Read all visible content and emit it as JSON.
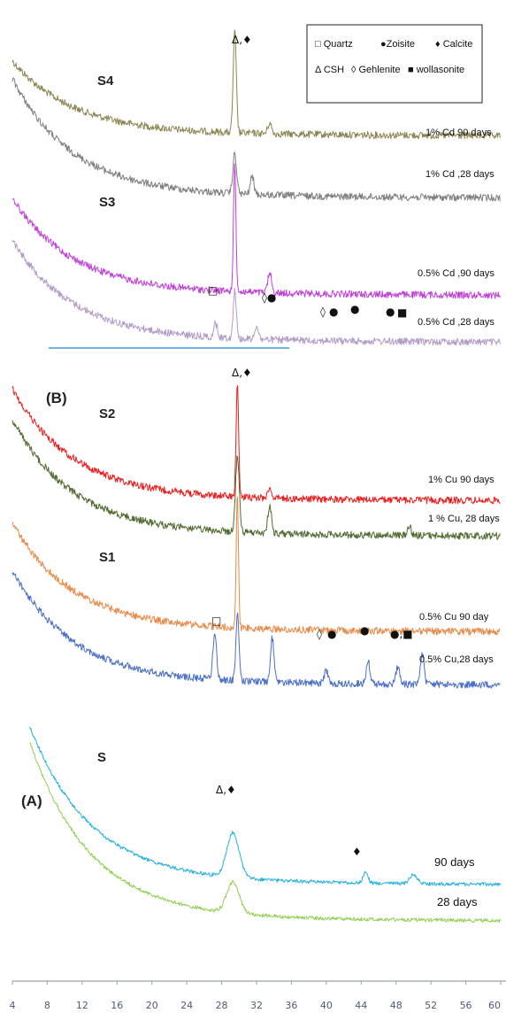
{
  "chart_data": {
    "type": "line",
    "xlim": [
      4,
      60
    ],
    "x_ticks": [
      "4",
      "8",
      "12",
      "16",
      "20",
      "24",
      "28",
      "32",
      "36",
      "40",
      "44",
      "48",
      "52",
      "56",
      "60"
    ],
    "legend": {
      "placement": "top-right",
      "entries": [
        {
          "symbol": "□",
          "label": "Quartz"
        },
        {
          "symbol": "●",
          "label": "Zoisite"
        },
        {
          "symbol": "♦",
          "label": "Calcite"
        },
        {
          "symbol": "Δ",
          "label": "CSH"
        },
        {
          "symbol": "◊",
          "label": "Gehlenite"
        },
        {
          "symbol": "■",
          "label": "wollasonite"
        }
      ]
    },
    "panels": [
      {
        "labels": [
          "S4",
          "S3"
        ],
        "series": [
          {
            "name": "1% Cd 90 days",
            "color": "#8c8552",
            "baseline": 152,
            "start": 70,
            "asym": 152,
            "peaks": [
              [
                29.5,
                115,
                0.25
              ],
              [
                33.5,
                12,
                0.3
              ]
            ]
          },
          {
            "name": "1% Cd ,28 days",
            "color": "#7f7f7f",
            "baseline": 225,
            "start": 90,
            "asym": 222,
            "peaks": [
              [
                29.5,
                45,
                0.3
              ],
              [
                31.5,
                20,
                0.3
              ]
            ]
          },
          {
            "name": "0.5% Cd ,90 days",
            "color": "#c040d8",
            "baseline": 335,
            "start": 225,
            "asym": 332,
            "peaks": [
              [
                29.5,
                145,
                0.2
              ],
              [
                33.5,
                22,
                0.3
              ]
            ]
          },
          {
            "name": "0.5% Cd ,28 days",
            "color": "#b49cc8",
            "baseline": 388,
            "start": 272,
            "asym": 385,
            "peaks": [
              [
                29.5,
                55,
                0.25
              ],
              [
                27.3,
                15,
                0.3
              ],
              [
                32,
                15,
                0.3
              ]
            ]
          }
        ]
      },
      {
        "labels": [
          "(B)",
          "S2",
          "S1"
        ],
        "series": [
          {
            "name": "1% Cu 90 days",
            "color": "#ee1c1c",
            "baseline": 565,
            "start": 440,
            "asym": 564,
            "peaks": [
              [
                29.8,
                130,
                0.2
              ],
              [
                33.5,
                12,
                0.3
              ]
            ]
          },
          {
            "name": "1 % Cu, 28 days",
            "color": "#506a30",
            "baseline": 605,
            "start": 475,
            "asym": 604,
            "peaks": [
              [
                29.8,
                85,
                0.3
              ],
              [
                33.5,
                30,
                0.3
              ],
              [
                49.5,
                10,
                0.3
              ]
            ]
          },
          {
            "name": "0.5% Cu 90 day",
            "color": "#e88a48",
            "baseline": 712,
            "start": 592,
            "asym": 712,
            "peaks": [
              [
                29.8,
                150,
                0.18
              ]
            ]
          },
          {
            "name": "0.5% Cu,28 days",
            "color": "#4a6fc8",
            "baseline": 773,
            "start": 645,
            "asym": 772,
            "peaks": [
              [
                29.8,
                75,
                0.25
              ],
              [
                27.2,
                50,
                0.3
              ],
              [
                33.8,
                50,
                0.3
              ],
              [
                40,
                15,
                0.3
              ],
              [
                44.8,
                25,
                0.3
              ],
              [
                48.2,
                20,
                0.3
              ],
              [
                51,
                35,
                0.3
              ]
            ]
          }
        ]
      },
      {
        "labels": [
          "S",
          "(A)"
        ],
        "series": [
          {
            "name": "90 days",
            "color": "#23b1e4",
            "baseline": 998,
            "start": 822,
            "asym": 997,
            "peaks": [
              [
                29.3,
                50,
                1.0
              ],
              [
                44.5,
                12,
                0.4
              ],
              [
                50,
                10,
                0.6
              ]
            ]
          },
          {
            "name": "28 days",
            "color": "#8fd04e",
            "baseline": 1040,
            "start": 840,
            "asym": 1038,
            "peaks": [
              [
                29.3,
                35,
                1.0
              ]
            ]
          }
        ]
      }
    ],
    "annotations": [
      "Δ,♦",
      "Δ,♦",
      "Δ,♦",
      "□",
      "◊●",
      "◊",
      "●",
      "●",
      "■",
      "□",
      "◊",
      "●",
      "●",
      "●,■",
      "♦"
    ]
  }
}
